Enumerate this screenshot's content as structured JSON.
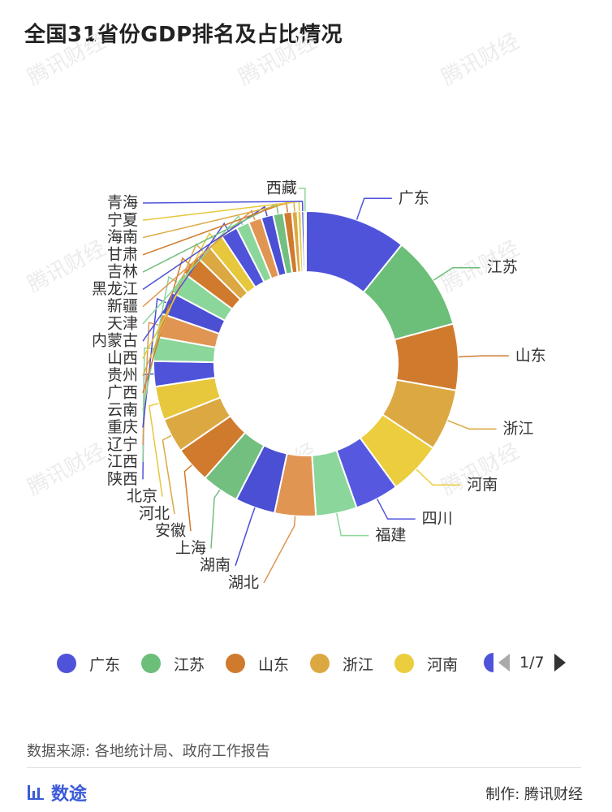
{
  "title": "全国31省份GDP排名及占比情况",
  "watermark": "腾讯财经",
  "chart_data": {
    "type": "pie",
    "variant": "donut",
    "title": "全国31省份GDP排名及占比情况",
    "unit": "share of national GDP (%)",
    "series": [
      {
        "name": "广东",
        "value": 10.9,
        "color": "#4f53d9",
        "label_side": "right"
      },
      {
        "name": "江苏",
        "value": 10.1,
        "color": "#6cbf79",
        "label_side": "right"
      },
      {
        "name": "山东",
        "value": 7.1,
        "color": "#d07a2e",
        "label_side": "right"
      },
      {
        "name": "浙江",
        "value": 6.6,
        "color": "#dca842",
        "label_side": "right"
      },
      {
        "name": "河南",
        "value": 5.7,
        "color": "#ebcd3e",
        "label_side": "right"
      },
      {
        "name": "四川",
        "value": 4.7,
        "color": "#5659e0",
        "label_side": "right"
      },
      {
        "name": "福建",
        "value": 4.4,
        "color": "#8bd69b",
        "label_side": "right"
      },
      {
        "name": "湖北",
        "value": 4.4,
        "color": "#e19553",
        "label_side": "left"
      },
      {
        "name": "湖南",
        "value": 4.3,
        "color": "#4a4fd3",
        "label_side": "left"
      },
      {
        "name": "上海",
        "value": 4.0,
        "color": "#72bf80",
        "label_side": "left"
      },
      {
        "name": "安徽",
        "value": 3.9,
        "color": "#d07a2e",
        "label_side": "left"
      },
      {
        "name": "河北",
        "value": 3.7,
        "color": "#dca842",
        "label_side": "left"
      },
      {
        "name": "北京",
        "value": 3.6,
        "color": "#e7c73c",
        "label_side": "left"
      },
      {
        "name": "陕西",
        "value": 2.7,
        "color": "#4f53d9",
        "label_side": "left"
      },
      {
        "name": "江西",
        "value": 2.6,
        "color": "#8bd69b",
        "label_side": "left"
      },
      {
        "name": "辽宁",
        "value": 2.5,
        "color": "#e19553",
        "label_side": "left"
      },
      {
        "name": "重庆",
        "value": 2.5,
        "color": "#4a4fd3",
        "label_side": "left"
      },
      {
        "name": "云南",
        "value": 2.4,
        "color": "#8bd69b",
        "label_side": "left"
      },
      {
        "name": "广西",
        "value": 2.2,
        "color": "#d07a2e",
        "label_side": "left"
      },
      {
        "name": "贵州",
        "value": 1.7,
        "color": "#dca842",
        "label_side": "left"
      },
      {
        "name": "山西",
        "value": 1.7,
        "color": "#e7c73c",
        "label_side": "left"
      },
      {
        "name": "内蒙古",
        "value": 1.8,
        "color": "#4f53d9",
        "label_side": "left"
      },
      {
        "name": "天津",
        "value": 1.4,
        "color": "#8bd69b",
        "label_side": "left"
      },
      {
        "name": "新疆",
        "value": 1.4,
        "color": "#e19553",
        "label_side": "left"
      },
      {
        "name": "黑龙江",
        "value": 1.3,
        "color": "#4a4fd3",
        "label_side": "left"
      },
      {
        "name": "吉林",
        "value": 1.1,
        "color": "#72bf80",
        "label_side": "left"
      },
      {
        "name": "甘肃",
        "value": 0.9,
        "color": "#d07a2e",
        "label_side": "left"
      },
      {
        "name": "海南",
        "value": 0.6,
        "color": "#dca842",
        "label_side": "left"
      },
      {
        "name": "宁夏",
        "value": 0.4,
        "color": "#e7c73c",
        "label_side": "left"
      },
      {
        "name": "青海",
        "value": 0.3,
        "color": "#4f53d9",
        "label_side": "left"
      },
      {
        "name": "西藏",
        "value": 0.2,
        "color": "#8bd69b",
        "label_side": "top"
      }
    ]
  },
  "legend": {
    "items": [
      {
        "label": "广东",
        "color": "#4f53d9"
      },
      {
        "label": "江苏",
        "color": "#6cbf79"
      },
      {
        "label": "山东",
        "color": "#d07a2e"
      },
      {
        "label": "浙江",
        "color": "#dca842"
      },
      {
        "label": "河南",
        "color": "#ebcd3e"
      }
    ],
    "partial_next_color": "#4f53d9",
    "page": "1/7"
  },
  "footer": {
    "source": "数据来源: 各地统计局、政府工作报告",
    "brand": "数途",
    "credit": "制作: 腾讯财经"
  }
}
